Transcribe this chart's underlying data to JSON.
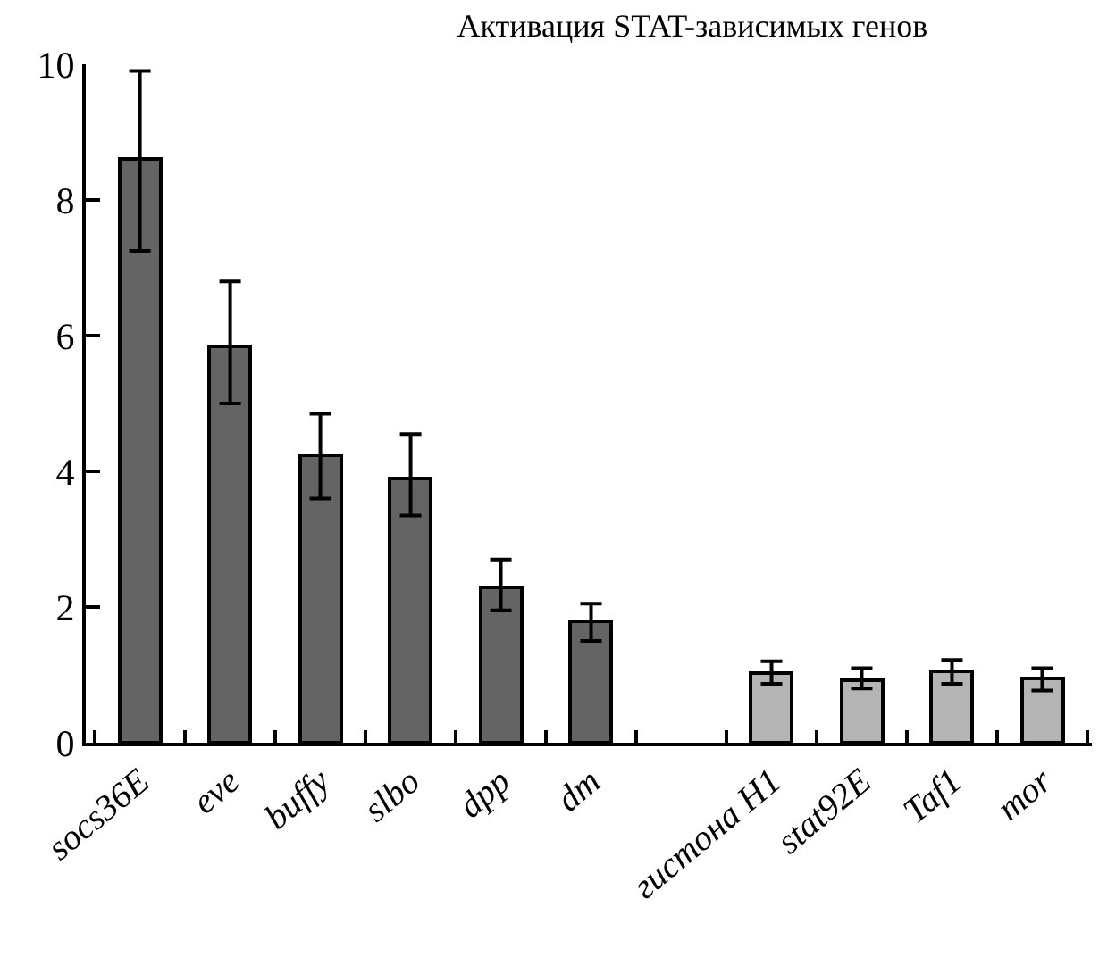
{
  "chart_data": {
    "type": "bar",
    "title": "Активация STAT-зависимых генов",
    "categories": [
      "socs36E",
      "eve",
      "buffy",
      "slbo",
      "dpp",
      "dm",
      null,
      "гистона H1",
      "stat92E",
      "Taf1",
      "mor"
    ],
    "values": [
      8.6,
      5.85,
      4.25,
      3.9,
      2.3,
      1.8,
      null,
      1.02,
      0.92,
      1.04,
      0.94
    ],
    "colors": [
      "#646464",
      "#646464",
      "#646464",
      "#646464",
      "#646464",
      "#646464",
      "#646464",
      "#b4b4b4",
      "#b4b4b4",
      "#b4b4b4",
      "#b4b4b4"
    ],
    "errors": [
      [
        7.25,
        9.9
      ],
      [
        5.0,
        6.8
      ],
      [
        3.6,
        4.85
      ],
      [
        3.35,
        4.55
      ],
      [
        1.95,
        2.7
      ],
      [
        1.5,
        2.05
      ],
      null,
      [
        0.87,
        1.2
      ],
      [
        0.8,
        1.1
      ],
      [
        0.87,
        1.22
      ],
      [
        0.77,
        1.1
      ]
    ],
    "ylim": [
      0,
      10
    ],
    "yticks": [
      0,
      2,
      4,
      6,
      8,
      10
    ]
  }
}
